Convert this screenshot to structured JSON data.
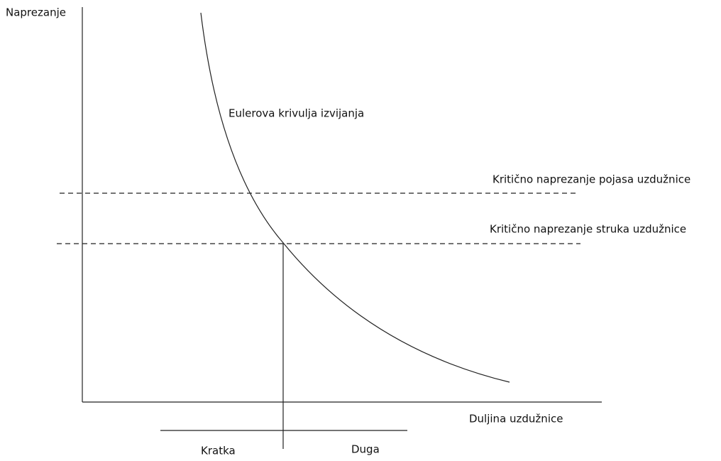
{
  "diagram": {
    "y_axis_label": "Naprezanje",
    "x_axis_label": "Duljina uzdužnice",
    "curve_label": "Eulerova krivulja izvijanja",
    "lines": [
      "Kritično naprezanje pojasa uzdužnice",
      "Kritično naprezanje struka uzdužnice"
    ],
    "regions": [
      "Kratka",
      "Duga"
    ]
  }
}
